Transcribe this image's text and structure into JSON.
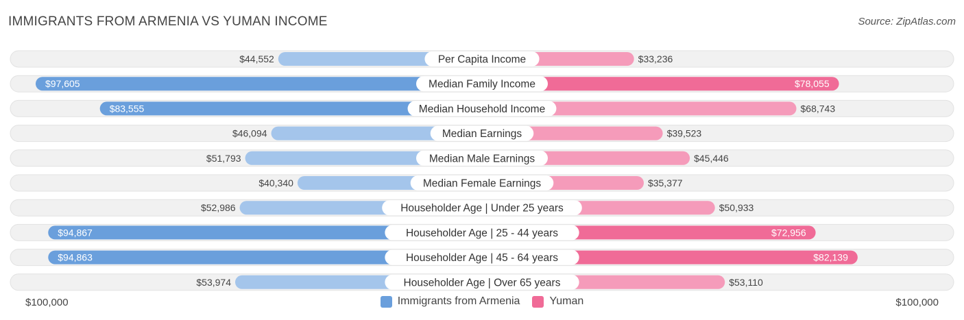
{
  "header": {
    "title": "IMMIGRANTS FROM ARMENIA VS YUMAN INCOME",
    "source": "Source: ZipAtlas.com"
  },
  "axis": {
    "left_label": "$100,000",
    "right_label": "$100,000"
  },
  "legend": {
    "items": [
      {
        "label": "Immigrants from Armenia",
        "color": "#6a9fdc"
      },
      {
        "label": "Yuman",
        "color": "#f06b97"
      }
    ]
  },
  "colors": {
    "left_strong": "#6a9fdc",
    "left_light": "#a4c5eb",
    "right_strong": "#f06b97",
    "right_light": "#f59bba",
    "row_bg": "#f1f1f1"
  },
  "chart_data": {
    "type": "bar",
    "title": "IMMIGRANTS FROM ARMENIA VS YUMAN INCOME",
    "orientation": "diverging-horizontal",
    "xlim": [
      0,
      100000
    ],
    "categories": [
      "Per Capita Income",
      "Median Family Income",
      "Median Household Income",
      "Median Earnings",
      "Median Male Earnings",
      "Median Female Earnings",
      "Householder Age | Under 25 years",
      "Householder Age | 25 - 44 years",
      "Householder Age | 45 - 64 years",
      "Householder Age | Over 65 years"
    ],
    "series": [
      {
        "name": "Immigrants from Armenia",
        "values": [
          44552,
          97605,
          83555,
          46094,
          51793,
          40340,
          52986,
          94867,
          94863,
          53974
        ],
        "labels": [
          "$44,552",
          "$97,605",
          "$83,555",
          "$46,094",
          "$51,793",
          "$40,340",
          "$52,986",
          "$94,867",
          "$94,863",
          "$53,974"
        ]
      },
      {
        "name": "Yuman",
        "values": [
          33236,
          78055,
          68743,
          39523,
          45446,
          35377,
          50933,
          72956,
          82139,
          53110
        ],
        "labels": [
          "$33,236",
          "$78,055",
          "$68,743",
          "$39,523",
          "$45,446",
          "$35,377",
          "$50,933",
          "$72,956",
          "$82,139",
          "$53,110"
        ]
      }
    ]
  }
}
